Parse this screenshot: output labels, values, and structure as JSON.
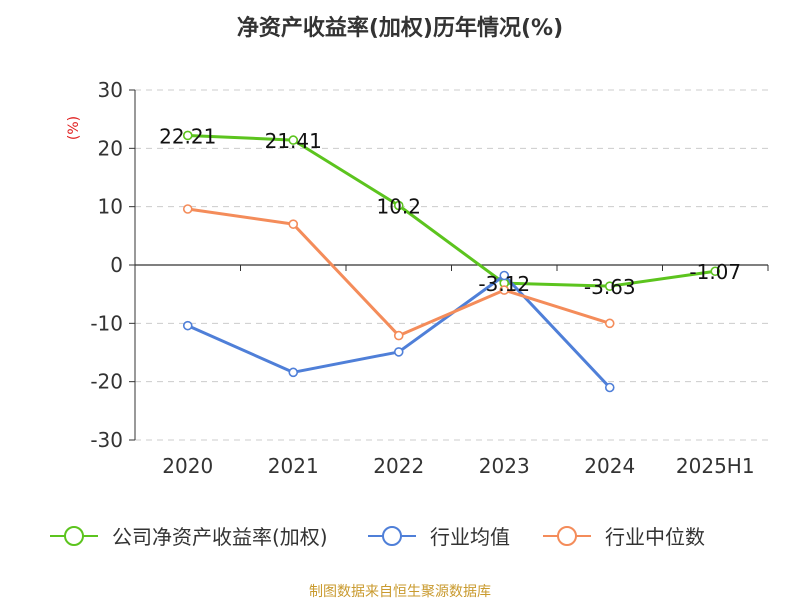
{
  "title": "净资产收益率(加权)历年情况(%)",
  "source_text": "制图数据来自恒生聚源数据库",
  "chart_data": {
    "type": "line",
    "title": "净资产收益率(加权)历年情况(%)",
    "ylabel": "(%)",
    "categories": [
      "2020",
      "2021",
      "2022",
      "2023",
      "2024",
      "2025H1"
    ],
    "ylim": [
      -30,
      30
    ],
    "yticks": [
      30,
      20,
      10,
      0,
      -10,
      -20,
      -30
    ],
    "grid": true,
    "legend_position": "bottom",
    "series": [
      {
        "name": "公司净资产收益率(加权)",
        "color": "#5cc41e",
        "values": [
          22.21,
          21.41,
          10.2,
          -3.12,
          -3.63,
          -1.07
        ],
        "labels": [
          "22.21",
          "21.41",
          "10.2",
          "-3.12",
          "-3.63",
          "-1.07"
        ]
      },
      {
        "name": "行业均值",
        "color": "#4f7fd8",
        "values": [
          -10.4,
          -18.4,
          -14.9,
          -1.8,
          -21.0,
          null
        ]
      },
      {
        "name": "行业中位数",
        "color": "#f48c5a",
        "values": [
          9.6,
          7.0,
          -12.1,
          -4.3,
          -10.0,
          null
        ]
      }
    ]
  }
}
